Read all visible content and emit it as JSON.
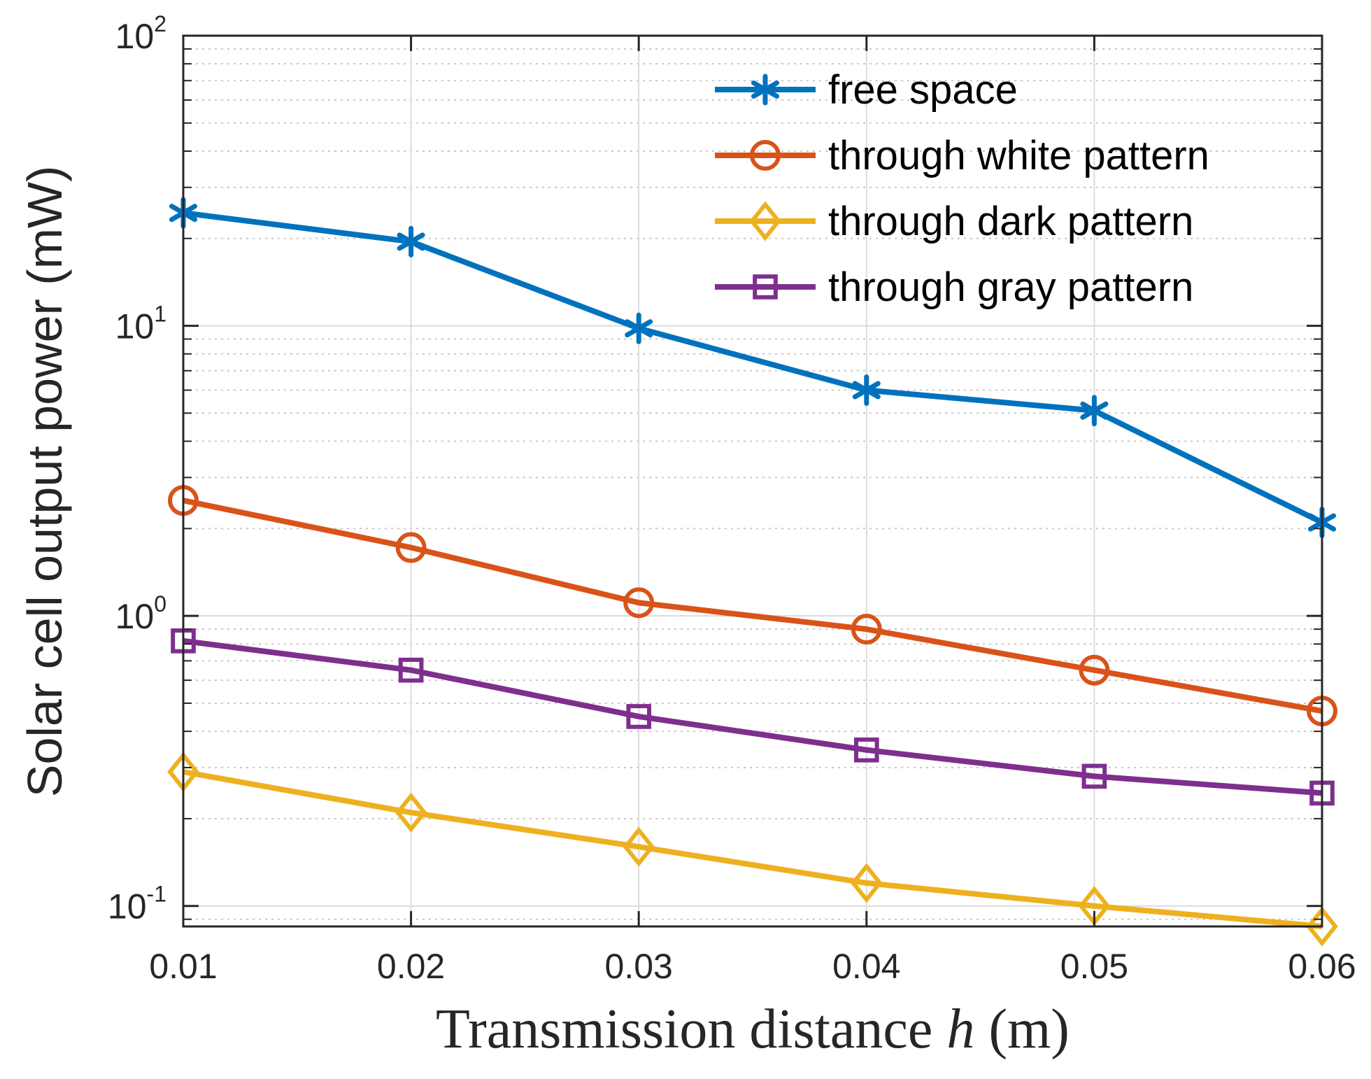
{
  "chart_data": {
    "type": "line",
    "yscale": "log",
    "x": [
      0.01,
      0.02,
      0.03,
      0.04,
      0.05,
      0.06
    ],
    "xlim": [
      0.01,
      0.06
    ],
    "ylim": [
      0.085,
      100
    ],
    "xticks": [
      "0.01",
      "0.02",
      "0.03",
      "0.04",
      "0.05",
      "0.06"
    ],
    "yticks": [
      {
        "value": 0.1,
        "base": "10",
        "exp": "-1"
      },
      {
        "value": 1,
        "base": "10",
        "exp": "0"
      },
      {
        "value": 10,
        "base": "10",
        "exp": "1"
      },
      {
        "value": 100,
        "base": "10",
        "exp": "2"
      }
    ],
    "xlabel": {
      "main": "Transmission distance ",
      "var": "h",
      "unit": " (m)"
    },
    "ylabel": "Solar cell output power (mW)",
    "grid": true,
    "legend_position": "top-right",
    "series": [
      {
        "name": "free space",
        "color": "#0072BD",
        "marker": "asterisk",
        "values": [
          24.5,
          19.5,
          9.8,
          6.0,
          5.1,
          2.1
        ]
      },
      {
        "name": "through white pattern",
        "color": "#D95319",
        "marker": "circle",
        "values": [
          2.5,
          1.72,
          1.11,
          0.9,
          0.65,
          0.47
        ]
      },
      {
        "name": "through dark pattern",
        "color": "#EDB120",
        "marker": "diamond",
        "values": [
          0.29,
          0.21,
          0.16,
          0.12,
          0.1,
          0.085
        ]
      },
      {
        "name": "through gray pattern",
        "color": "#7E2F8E",
        "marker": "square",
        "values": [
          0.82,
          0.65,
          0.45,
          0.345,
          0.28,
          0.245
        ]
      }
    ]
  }
}
